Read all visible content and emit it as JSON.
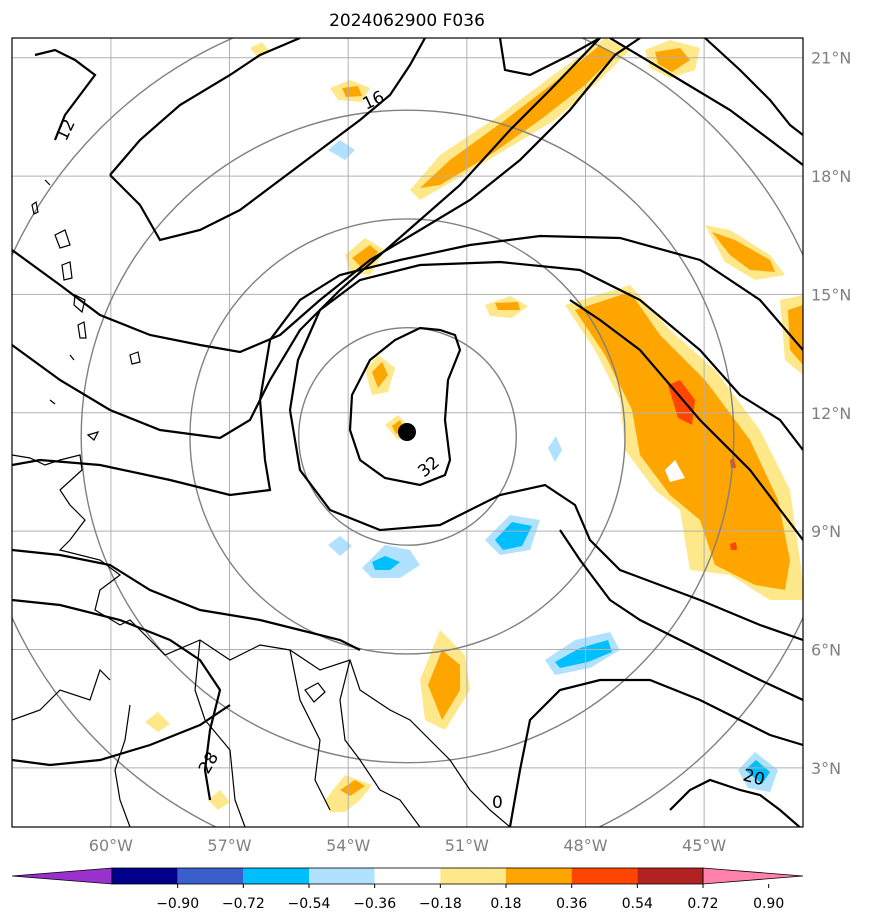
{
  "title": "2024062900 F036",
  "map": {
    "lon_range": [
      -62.5,
      -42.5
    ],
    "lat_range": [
      1.5,
      21.5
    ],
    "lon_ticks": [
      -60,
      -57,
      -54,
      -51,
      -48,
      -45
    ],
    "lat_ticks": [
      3,
      6,
      9,
      12,
      15,
      18,
      21
    ],
    "lon_tick_labels": [
      "60°W",
      "57°W",
      "54°W",
      "51°W",
      "48°W",
      "45°W"
    ],
    "lat_tick_labels": [
      "3°N",
      "6°N",
      "9°N",
      "12°N",
      "15°N",
      "18°N",
      "21°N"
    ],
    "grid": true,
    "storm_center": {
      "lon": -52.5,
      "lat": 11.4
    },
    "range_rings_deg": [
      2.75,
      5.5,
      8.25,
      11.0
    ],
    "contour_labels": [
      "12",
      "16",
      "32",
      "28",
      "20",
      "0"
    ]
  },
  "colorbar": {
    "ticks": [
      "−0.90",
      "−0.72",
      "−0.54",
      "−0.36",
      "−0.18",
      "0.18",
      "0.36",
      "0.54",
      "0.72",
      "0.90"
    ],
    "colors": [
      "#9932cc",
      "#00008b",
      "#3a5fcd",
      "#00bfff",
      "#b0e2ff",
      "#ffffff",
      "#ffe88a",
      "#ffa500",
      "#ff4500",
      "#b22222",
      "#ff82ab"
    ]
  },
  "colors": {
    "grid": "#b0b0b0",
    "rings": "#808080",
    "contour": "#000000",
    "tick_label": "#808080"
  }
}
